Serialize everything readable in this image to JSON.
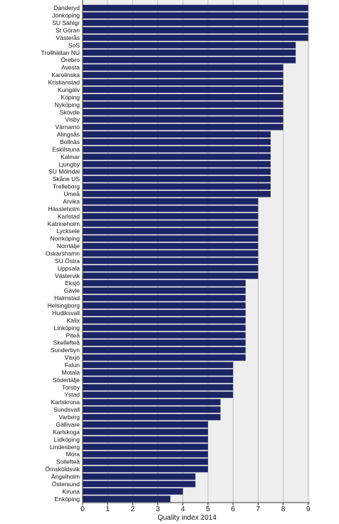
{
  "chart_data": {
    "type": "bar",
    "orientation": "horizontal",
    "categories": [
      "Danderyd",
      "Jönköping",
      "SU Sahlgr",
      "St Göran",
      "Västerås",
      "SoS",
      "Trollhättan NU",
      "Örebro",
      "Avesta",
      "Karolinska",
      "Kristianstad",
      "Kungälv",
      "Köping",
      "Nyköping",
      "Skövde",
      "Visby",
      "Värnamo",
      "Alingsås",
      "Bollnäs",
      "Eskilstuna",
      "Kalmar",
      "Ljungby",
      "SU Mölndal",
      "Skåne US",
      "Trelleborg",
      "Umeå",
      "Arvika",
      "Hässleholm",
      "Karlstad",
      "Katrineholm",
      "Lycksele",
      "Norrköping",
      "Norrtälje",
      "Oskarshamn",
      "SU Östra",
      "Uppsala",
      "Västervik",
      "Eksjö",
      "Gävle",
      "Halmstad",
      "Helsingborg",
      "Hudiksvall",
      "Kalix",
      "Linköping",
      "Piteå",
      "Skellefteå",
      "Sunderbyn",
      "Växjö",
      "Falun",
      "Motala",
      "Södertälje",
      "Torsby",
      "Ystad",
      "Karlskrona",
      "Sundsvall",
      "Varberg",
      "Gällivare",
      "Karlskoga",
      "Lidköping",
      "Lindesberg",
      "Mora",
      "Sollefteå",
      "Örnsköldsvik",
      "Ängelholm",
      "Östersund",
      "Kiruna",
      "Enköping"
    ],
    "values": [
      9,
      9,
      9,
      9,
      9,
      8.5,
      8.5,
      8.5,
      8,
      8,
      8,
      8,
      8,
      8,
      8,
      8,
      8,
      7.5,
      7.5,
      7.5,
      7.5,
      7.5,
      7.5,
      7.5,
      7.5,
      7.5,
      7,
      7,
      7,
      7,
      7,
      7,
      7,
      7,
      7,
      7,
      7,
      6.5,
      6.5,
      6.5,
      6.5,
      6.5,
      6.5,
      6.5,
      6.5,
      6.5,
      6.5,
      6.5,
      6,
      6,
      6,
      6,
      6,
      5.5,
      5.5,
      5.5,
      5,
      5,
      5,
      5,
      5,
      5,
      5,
      4.5,
      4.5,
      4,
      3.5
    ],
    "xlabel": "Quality index 2014",
    "ylabel": "",
    "xlim": [
      0,
      9
    ],
    "xticks": [
      0,
      1,
      2,
      3,
      4,
      5,
      6,
      7,
      8,
      9
    ],
    "grid": "vertical",
    "colors": {
      "bar": "#1b2566",
      "plot_bg": "#eeeeee",
      "grid": "#bdbdbd"
    }
  }
}
